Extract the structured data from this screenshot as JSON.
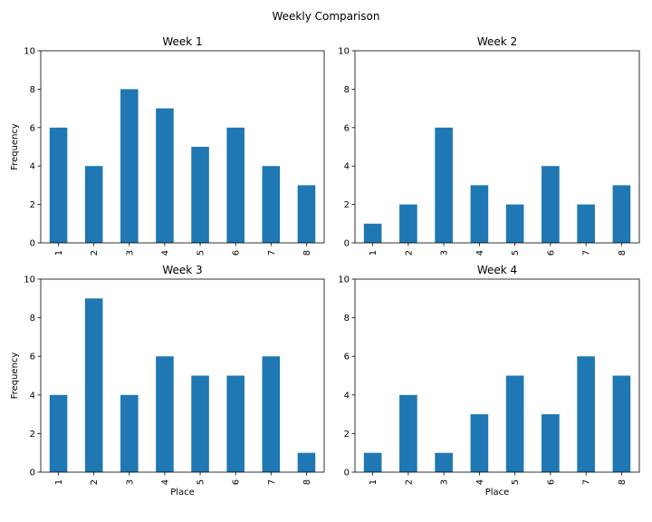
{
  "figure": {
    "title": "Weekly Comparison",
    "bar_color": "#1f77b4"
  },
  "chart_data": [
    {
      "type": "bar",
      "title": "Week 1",
      "categories": [
        "1",
        "2",
        "3",
        "4",
        "5",
        "6",
        "7",
        "8"
      ],
      "values": [
        6,
        4,
        8,
        7,
        5,
        6,
        4,
        3
      ],
      "xlabel": "",
      "ylabel": "Frequency",
      "ylim": [
        0,
        10
      ],
      "yticks": [
        "0",
        "2",
        "4",
        "6",
        "8",
        "10"
      ],
      "grid": false
    },
    {
      "type": "bar",
      "title": "Week 2",
      "categories": [
        "1",
        "2",
        "3",
        "4",
        "5",
        "6",
        "7",
        "8"
      ],
      "values": [
        1,
        2,
        6,
        3,
        2,
        4,
        2,
        3
      ],
      "xlabel": "",
      "ylabel": "",
      "ylim": [
        0,
        10
      ],
      "yticks": [
        "0",
        "2",
        "4",
        "6",
        "8",
        "10"
      ],
      "grid": false
    },
    {
      "type": "bar",
      "title": "Week 3",
      "categories": [
        "1",
        "2",
        "3",
        "4",
        "5",
        "6",
        "7",
        "8"
      ],
      "values": [
        4,
        9,
        4,
        6,
        5,
        5,
        6,
        1
      ],
      "xlabel": "Place",
      "ylabel": "Frequency",
      "ylim": [
        0,
        10
      ],
      "yticks": [
        "0",
        "2",
        "4",
        "6",
        "8",
        "10"
      ],
      "grid": false
    },
    {
      "type": "bar",
      "title": "Week 4",
      "categories": [
        "1",
        "2",
        "3",
        "4",
        "5",
        "6",
        "7",
        "8"
      ],
      "values": [
        1,
        4,
        1,
        3,
        5,
        3,
        6,
        5
      ],
      "xlabel": "Place",
      "ylabel": "",
      "ylim": [
        0,
        10
      ],
      "yticks": [
        "0",
        "2",
        "4",
        "6",
        "8",
        "10"
      ],
      "grid": false
    }
  ]
}
